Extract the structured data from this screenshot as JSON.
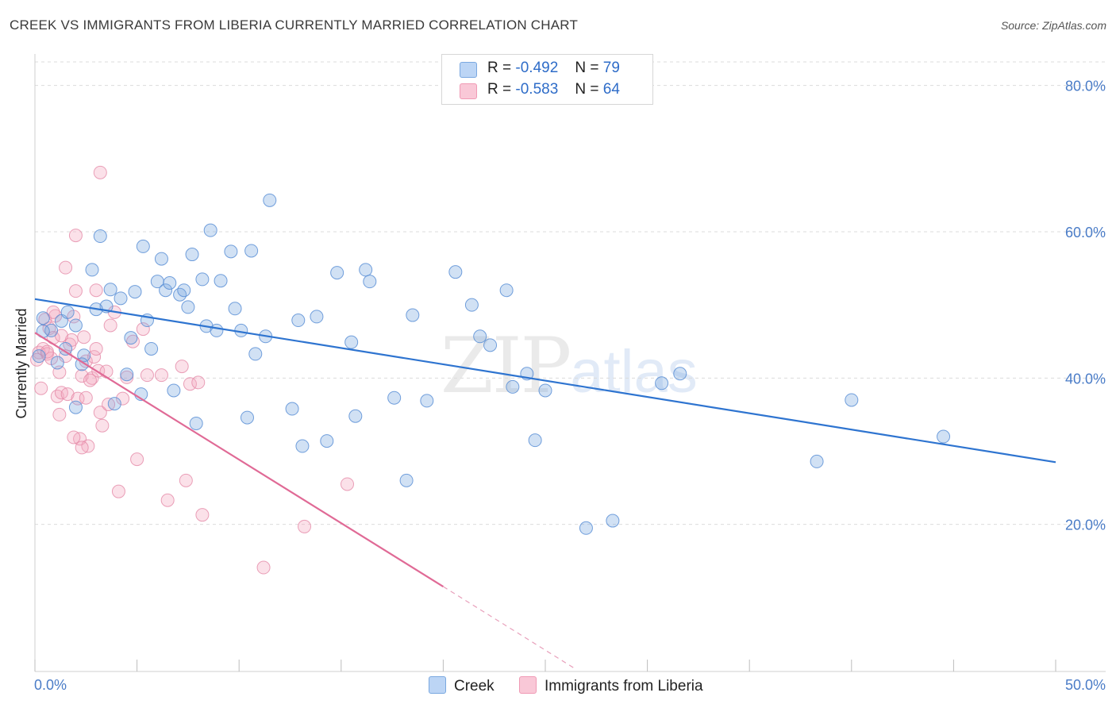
{
  "title": "CREEK VS IMMIGRANTS FROM LIBERIA CURRENTLY MARRIED CORRELATION CHART",
  "source": "Source: ZipAtlas.com",
  "watermark": {
    "zip": "ZIP",
    "atlas": "atlas"
  },
  "legend": {
    "rows": [
      {
        "r_label": "R =",
        "r_value": "-0.492",
        "n_label": "N =",
        "n_value": "79",
        "color": "#a9c8f0"
      },
      {
        "r_label": "R =",
        "r_value": "-0.583",
        "n_label": "N =",
        "n_value": "64",
        "color": "#f5b3c8"
      }
    ]
  },
  "bottom_legend": {
    "creek": "Creek",
    "liberia": "Immigrants from Liberia"
  },
  "chart_data": {
    "type": "scatter",
    "title": "CREEK VS IMMIGRANTS FROM LIBERIA CURRENTLY MARRIED CORRELATION CHART",
    "xlabel": "",
    "ylabel": "Currently Married",
    "xlim": [
      0,
      50
    ],
    "ylim": [
      0,
      83
    ],
    "x_tick_labels": [
      "0.0%",
      "50.0%"
    ],
    "y_ticks": [
      20,
      40,
      60,
      80
    ],
    "y_tick_labels": [
      "20.0%",
      "40.0%",
      "60.0%",
      "80.0%"
    ],
    "grid": true,
    "legend_position": "top-center",
    "series": [
      {
        "name": "Creek",
        "color": "#7aa8e0",
        "stroke": "#5b8fd6",
        "trend": {
          "x0": 0,
          "y0": 50.8,
          "x1": 50,
          "y1": 28.5,
          "color": "#2e74d0"
        },
        "points": [
          [
            0.4,
            48.2
          ],
          [
            0.8,
            46.5
          ],
          [
            1.3,
            47.8
          ],
          [
            1.6,
            49.0
          ],
          [
            2.0,
            47.2
          ],
          [
            2.4,
            43.1
          ],
          [
            2.8,
            54.8
          ],
          [
            3.2,
            59.4
          ],
          [
            3.5,
            49.8
          ],
          [
            3.7,
            52.1
          ],
          [
            3.9,
            36.5
          ],
          [
            4.2,
            50.9
          ],
          [
            4.5,
            40.5
          ],
          [
            4.7,
            45.5
          ],
          [
            4.9,
            51.8
          ],
          [
            5.2,
            37.8
          ],
          [
            5.3,
            58.0
          ],
          [
            5.5,
            47.9
          ],
          [
            5.7,
            44.0
          ],
          [
            6.0,
            53.2
          ],
          [
            6.2,
            56.3
          ],
          [
            6.4,
            52.0
          ],
          [
            6.6,
            53.0
          ],
          [
            6.8,
            38.3
          ],
          [
            7.1,
            51.4
          ],
          [
            7.3,
            52.0
          ],
          [
            7.5,
            49.7
          ],
          [
            7.7,
            56.9
          ],
          [
            7.9,
            33.8
          ],
          [
            8.2,
            53.5
          ],
          [
            8.4,
            47.1
          ],
          [
            8.6,
            60.2
          ],
          [
            8.9,
            46.5
          ],
          [
            9.1,
            53.3
          ],
          [
            9.6,
            57.3
          ],
          [
            9.8,
            49.5
          ],
          [
            10.1,
            46.5
          ],
          [
            10.4,
            34.6
          ],
          [
            10.6,
            57.4
          ],
          [
            10.8,
            43.3
          ],
          [
            11.3,
            45.7
          ],
          [
            11.5,
            64.3
          ],
          [
            12.6,
            35.8
          ],
          [
            12.9,
            47.9
          ],
          [
            13.1,
            30.7
          ],
          [
            13.8,
            48.4
          ],
          [
            14.3,
            31.4
          ],
          [
            14.8,
            54.4
          ],
          [
            15.5,
            44.9
          ],
          [
            15.7,
            34.8
          ],
          [
            16.2,
            54.8
          ],
          [
            16.4,
            53.2
          ],
          [
            17.6,
            37.3
          ],
          [
            18.2,
            26.0
          ],
          [
            18.5,
            48.6
          ],
          [
            19.2,
            36.9
          ],
          [
            20.6,
            54.5
          ],
          [
            21.4,
            50.0
          ],
          [
            21.8,
            45.7
          ],
          [
            22.3,
            44.5
          ],
          [
            23.1,
            52.0
          ],
          [
            23.4,
            38.8
          ],
          [
            24.1,
            40.6
          ],
          [
            24.5,
            31.5
          ],
          [
            25.0,
            38.3
          ],
          [
            27.0,
            19.5
          ],
          [
            28.3,
            20.5
          ],
          [
            30.7,
            39.3
          ],
          [
            31.6,
            40.6
          ],
          [
            38.3,
            28.6
          ],
          [
            40.0,
            37.0
          ],
          [
            44.5,
            32.0
          ],
          [
            0.4,
            46.4
          ],
          [
            1.1,
            42.1
          ],
          [
            2.3,
            41.9
          ],
          [
            3.0,
            49.4
          ],
          [
            0.2,
            43.0
          ],
          [
            1.5,
            44.0
          ],
          [
            2.0,
            36.0
          ]
        ]
      },
      {
        "name": "Immigrants from Liberia",
        "color": "#f4a9c0",
        "stroke": "#e58aa8",
        "trend": {
          "x0": 0,
          "y0": 46.2,
          "x1": 20.0,
          "y1": 11.5,
          "color": "#e06a96"
        },
        "trend_dashed": {
          "x0": 20.0,
          "y0": 11.5,
          "x1": 26.5,
          "y1": 0.2
        },
        "points": [
          [
            0.2,
            43.5
          ],
          [
            0.3,
            38.6
          ],
          [
            0.4,
            44.0
          ],
          [
            0.5,
            48.0
          ],
          [
            0.6,
            43.3
          ],
          [
            0.7,
            46.8
          ],
          [
            0.8,
            42.7
          ],
          [
            0.9,
            45.5
          ],
          [
            1.0,
            48.5
          ],
          [
            1.1,
            37.5
          ],
          [
            1.2,
            40.8
          ],
          [
            1.2,
            35.0
          ],
          [
            1.3,
            38.0
          ],
          [
            1.5,
            55.1
          ],
          [
            1.6,
            37.8
          ],
          [
            1.7,
            44.6
          ],
          [
            1.8,
            45.2
          ],
          [
            1.9,
            48.4
          ],
          [
            2.0,
            59.5
          ],
          [
            2.0,
            51.9
          ],
          [
            2.1,
            37.2
          ],
          [
            2.2,
            31.7
          ],
          [
            2.3,
            40.3
          ],
          [
            2.4,
            45.6
          ],
          [
            2.5,
            37.3
          ],
          [
            2.5,
            42.3
          ],
          [
            2.6,
            30.7
          ],
          [
            2.8,
            40.0
          ],
          [
            2.9,
            42.9
          ],
          [
            3.0,
            52.0
          ],
          [
            3.1,
            41.0
          ],
          [
            3.2,
            35.3
          ],
          [
            3.3,
            33.5
          ],
          [
            3.5,
            40.9
          ],
          [
            3.6,
            36.4
          ],
          [
            3.7,
            47.2
          ],
          [
            3.9,
            49.0
          ],
          [
            4.1,
            24.5
          ],
          [
            4.3,
            37.2
          ],
          [
            4.5,
            40.1
          ],
          [
            4.8,
            45.0
          ],
          [
            5.0,
            28.9
          ],
          [
            5.3,
            46.7
          ],
          [
            5.5,
            40.4
          ],
          [
            6.2,
            40.4
          ],
          [
            6.5,
            23.3
          ],
          [
            7.2,
            41.6
          ],
          [
            7.4,
            26.0
          ],
          [
            7.6,
            39.2
          ],
          [
            8.0,
            39.4
          ],
          [
            8.2,
            21.3
          ],
          [
            11.2,
            14.1
          ],
          [
            13.2,
            19.7
          ],
          [
            15.3,
            25.5
          ],
          [
            3.2,
            68.1
          ],
          [
            0.1,
            42.5
          ],
          [
            0.9,
            49.0
          ],
          [
            1.3,
            45.8
          ],
          [
            0.6,
            43.6
          ],
          [
            2.7,
            39.7
          ],
          [
            1.9,
            31.9
          ],
          [
            2.3,
            30.5
          ],
          [
            3.0,
            44.0
          ],
          [
            1.5,
            43.0
          ]
        ]
      }
    ]
  }
}
